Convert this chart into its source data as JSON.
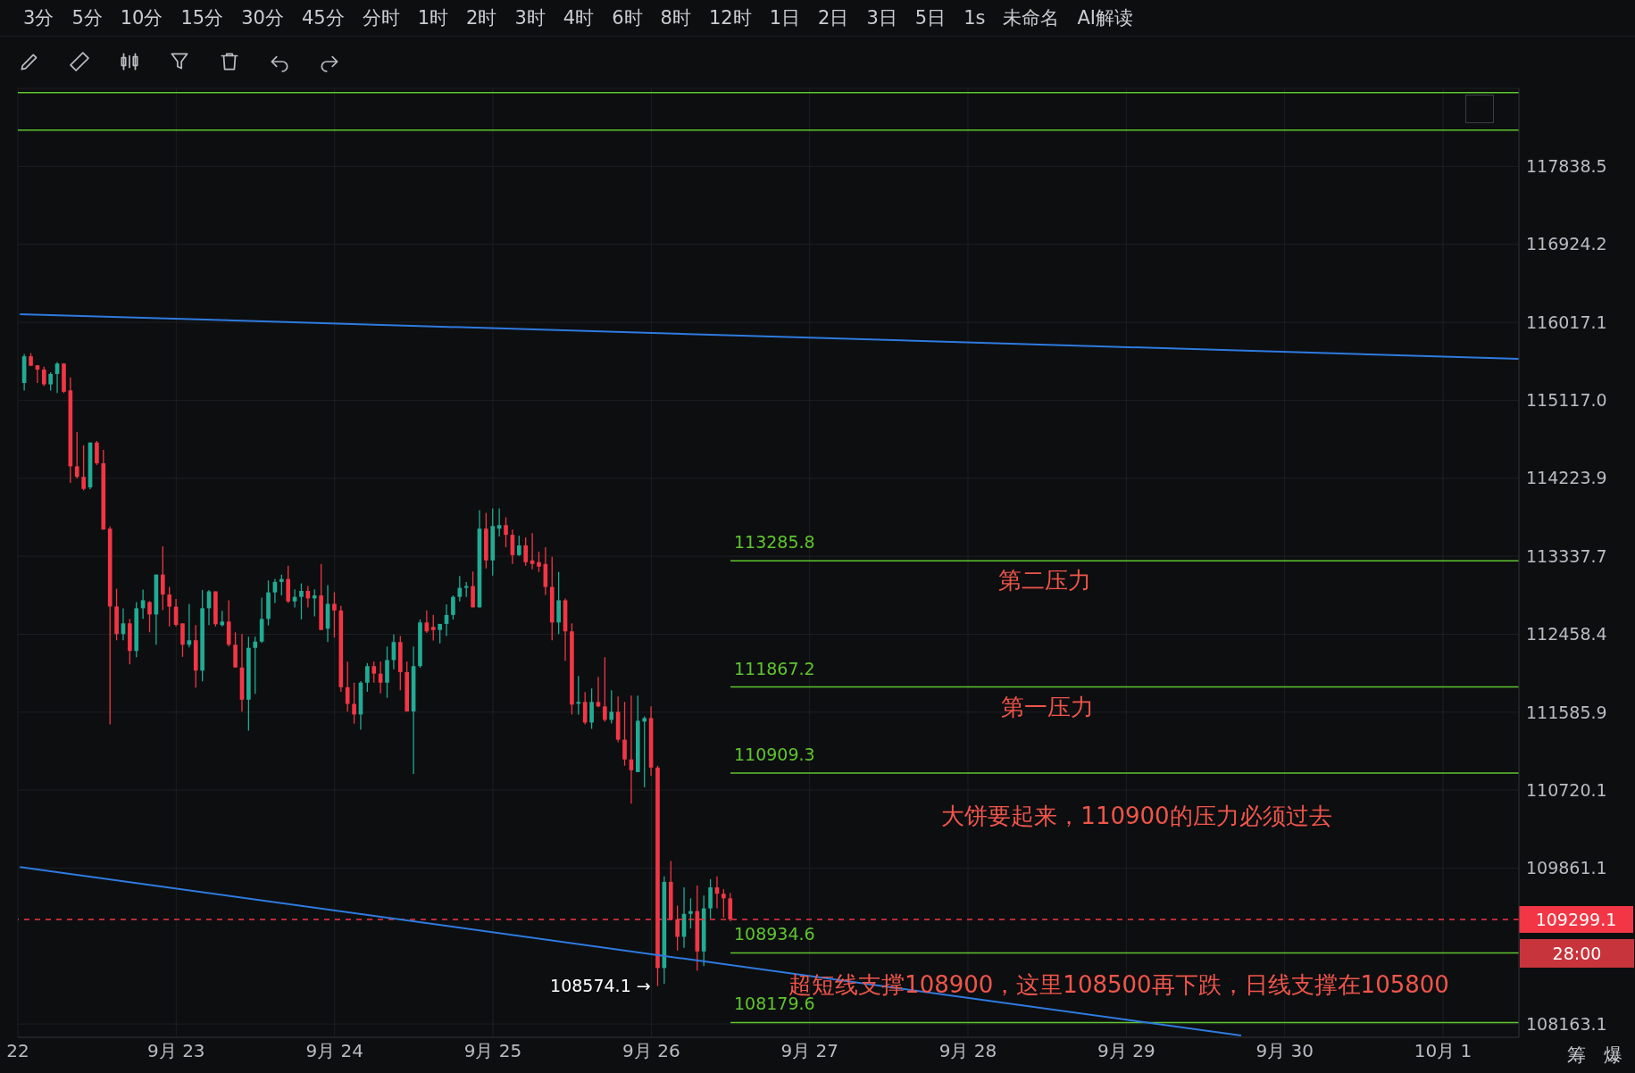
{
  "chart_data": {
    "type": "candlestick",
    "x": [
      "--09-22T01:00",
      "--09-22T02:00",
      "--09-22T03:00",
      "--09-22T04:00",
      "--09-22T05:00",
      "--09-22T06:00",
      "--09-22T07:00",
      "--09-22T08:00",
      "--09-22T09:00",
      "--09-22T10:00",
      "--09-22T11:00",
      "--09-22T12:00",
      "--09-22T13:00",
      "--09-22T14:00",
      "--09-22T15:00",
      "--09-22T16:00",
      "--09-22T17:00",
      "--09-22T18:00",
      "--09-22T19:00",
      "--09-22T20:00",
      "--09-22T21:00",
      "--09-22T22:00",
      "--09-22T23:00",
      "--09-23T00:00",
      "--09-23T01:00",
      "--09-23T02:00",
      "--09-23T03:00",
      "--09-23T04:00",
      "--09-23T05:00",
      "--09-23T06:00",
      "--09-23T07:00",
      "--09-23T08:00",
      "--09-23T09:00",
      "--09-23T10:00",
      "--09-23T11:00",
      "--09-23T12:00",
      "--09-23T13:00",
      "--09-23T14:00",
      "--09-23T15:00",
      "--09-23T16:00",
      "--09-23T17:00",
      "--09-23T18:00",
      "--09-23T19:00",
      "--09-23T20:00",
      "--09-23T21:00",
      "--09-23T22:00",
      "--09-23T23:00",
      "--09-24T00:00",
      "--09-24T01:00",
      "--09-24T02:00",
      "--09-24T03:00",
      "--09-24T04:00",
      "--09-24T05:00",
      "--09-24T06:00",
      "--09-24T07:00",
      "--09-24T08:00",
      "--09-24T09:00",
      "--09-24T10:00",
      "--09-24T11:00",
      "--09-24T12:00",
      "--09-24T13:00",
      "--09-24T14:00",
      "--09-24T15:00",
      "--09-24T16:00",
      "--09-24T17:00",
      "--09-24T18:00",
      "--09-24T19:00",
      "--09-24T20:00",
      "--09-24T21:00",
      "--09-24T22:00",
      "--09-24T23:00",
      "--09-25T00:00",
      "--09-25T01:00",
      "--09-25T02:00",
      "--09-25T03:00",
      "--09-25T04:00",
      "--09-25T05:00",
      "--09-25T06:00",
      "--09-25T07:00",
      "--09-25T08:00",
      "--09-25T09:00",
      "--09-25T10:00",
      "--09-25T11:00",
      "--09-25T12:00",
      "--09-25T13:00",
      "--09-25T14:00",
      "--09-25T15:00",
      "--09-25T16:00",
      "--09-25T17:00",
      "--09-25T18:00",
      "--09-25T19:00",
      "--09-25T20:00",
      "--09-25T21:00",
      "--09-25T22:00",
      "--09-25T23:00",
      "--09-26T00:00",
      "--09-26T01:00",
      "--09-26T02:00",
      "--09-26T03:00",
      "--09-26T04:00",
      "--09-26T05:00",
      "--09-26T06:00",
      "--09-26T07:00",
      "--09-26T08:00",
      "--09-26T09:00",
      "--09-26T10:00",
      "--09-26T11:00",
      "--09-26T12:00"
    ],
    "ohlc": [
      [
        115316,
        115650,
        115230,
        115624
      ],
      [
        115624,
        115660,
        115510,
        115515
      ],
      [
        115520,
        115522,
        115316,
        115470
      ],
      [
        115470,
        115505,
        115280,
        115300
      ],
      [
        115300,
        115440,
        115230,
        115420
      ],
      [
        115420,
        115555,
        115200,
        115540
      ],
      [
        115540,
        115545,
        115200,
        115215
      ],
      [
        115231,
        115380,
        114170,
        114360
      ],
      [
        114360,
        114752,
        114222,
        114240
      ],
      [
        114240,
        114600,
        114085,
        114102
      ],
      [
        114120,
        114632,
        114100,
        114632
      ],
      [
        114632,
        114650,
        114375,
        114395
      ],
      [
        114395,
        114547,
        113640,
        113640
      ],
      [
        113650,
        113675,
        111450,
        112770
      ],
      [
        112770,
        112970,
        112390,
        112460
      ],
      [
        112460,
        112750,
        112390,
        112580
      ],
      [
        112580,
        112630,
        112120,
        112270
      ],
      [
        112270,
        112820,
        112200,
        112750
      ],
      [
        112750,
        112960,
        112630,
        112840
      ],
      [
        112820,
        112830,
        112480,
        112680
      ],
      [
        112680,
        113130,
        112340,
        113130
      ],
      [
        113130,
        113450,
        112730,
        112905
      ],
      [
        112905,
        112990,
        112545,
        112768
      ],
      [
        112768,
        112854,
        112545,
        112563
      ],
      [
        112580,
        112580,
        112204,
        112340
      ],
      [
        112340,
        112800,
        112310,
        112390
      ],
      [
        112390,
        112560,
        111860,
        112050
      ],
      [
        112050,
        112956,
        111930,
        112750
      ],
      [
        112750,
        112956,
        112560,
        112940
      ],
      [
        112940,
        112940,
        112545,
        112570
      ],
      [
        112560,
        112720,
        112545,
        112600
      ],
      [
        112600,
        112840,
        112320,
        112340
      ],
      [
        112340,
        112480,
        112085,
        112085
      ],
      [
        112085,
        112460,
        111590,
        111725
      ],
      [
        111725,
        112430,
        111380,
        112305
      ],
      [
        112305,
        112430,
        111790,
        112375
      ],
      [
        112375,
        112870,
        112360,
        112630
      ],
      [
        112630,
        113064,
        112557,
        112929
      ],
      [
        112929,
        113080,
        112810,
        113047
      ],
      [
        113047,
        113130,
        112895,
        113080
      ],
      [
        113080,
        113230,
        112810,
        112827
      ],
      [
        112827,
        112962,
        112760,
        112878
      ],
      [
        112878,
        113030,
        112625,
        112945
      ],
      [
        112945,
        113000,
        112760,
        112861
      ],
      [
        112861,
        112962,
        112658,
        112895
      ],
      [
        112895,
        113250,
        112506,
        112506
      ],
      [
        112520,
        113010,
        112370,
        112800
      ],
      [
        112800,
        112930,
        112420,
        112725
      ],
      [
        112725,
        112776,
        111813,
        111864
      ],
      [
        111864,
        112150,
        111594,
        111678
      ],
      [
        111678,
        111915,
        111458,
        111560
      ],
      [
        111560,
        111932,
        111390,
        111915
      ],
      [
        111915,
        112134,
        111813,
        112100
      ],
      [
        112100,
        112151,
        111915,
        112016
      ],
      [
        112016,
        112151,
        111796,
        111915
      ],
      [
        111915,
        112320,
        111746,
        112168
      ],
      [
        112168,
        112455,
        112066,
        112370
      ],
      [
        112370,
        112438,
        111830,
        112033
      ],
      [
        112033,
        112151,
        111594,
        111594
      ],
      [
        111594,
        112320,
        110900,
        112100
      ],
      [
        112100,
        112624,
        112083,
        112590
      ],
      [
        112590,
        112726,
        112472,
        112490
      ],
      [
        112540,
        112675,
        112388,
        112506
      ],
      [
        112506,
        112574,
        112354,
        112574
      ],
      [
        112574,
        112793,
        112438,
        112675
      ],
      [
        112675,
        112895,
        112624,
        112878
      ],
      [
        112878,
        113115,
        112827,
        112980
      ],
      [
        112980,
        113047,
        112878,
        113000
      ],
      [
        113000,
        113165,
        112760,
        112760
      ],
      [
        112760,
        113860,
        112760,
        113650
      ],
      [
        113650,
        113830,
        113200,
        113290
      ],
      [
        113290,
        113880,
        113120,
        113680
      ],
      [
        113650,
        113880,
        113560,
        113690
      ],
      [
        113690,
        113780,
        113440,
        113580
      ],
      [
        113580,
        113640,
        113250,
        113350
      ],
      [
        113350,
        113570,
        113340,
        113460
      ],
      [
        113460,
        113550,
        113230,
        113270
      ],
      [
        113290,
        113600,
        113190,
        113250
      ],
      [
        113270,
        113390,
        113160,
        113220
      ],
      [
        113250,
        113440,
        112900,
        112990
      ],
      [
        112990,
        113330,
        112390,
        112590
      ],
      [
        112590,
        113160,
        112460,
        112840
      ],
      [
        112840,
        112860,
        112160,
        112490
      ],
      [
        112490,
        112580,
        111560,
        111670
      ],
      [
        111680,
        111990,
        111560,
        111700
      ],
      [
        111700,
        111810,
        111450,
        111470
      ],
      [
        111470,
        111850,
        111400,
        111700
      ],
      [
        111700,
        111980,
        111640,
        111650
      ],
      [
        111650,
        112200,
        111480,
        111500
      ],
      [
        111500,
        111830,
        111460,
        111590
      ],
      [
        111590,
        111760,
        111250,
        111280
      ],
      [
        111280,
        111700,
        110990,
        111060
      ],
      [
        111060,
        111770,
        110570,
        110940
      ],
      [
        110920,
        111770,
        110920,
        111490
      ],
      [
        111480,
        111540,
        110750,
        111520
      ],
      [
        111520,
        111650,
        110880,
        110970
      ],
      [
        110970,
        110990,
        108574.1,
        108770
      ],
      [
        108770,
        109770,
        108600,
        109710
      ],
      [
        109710,
        109940,
        109290,
        109300
      ],
      [
        109300,
        109450,
        108960,
        109110
      ],
      [
        109110,
        109650,
        108990,
        109360
      ],
      [
        109360,
        109530,
        109200,
        109390
      ],
      [
        109390,
        109670,
        108740,
        108950
      ],
      [
        108950,
        109560,
        108790,
        109420
      ],
      [
        109420,
        109740,
        109310,
        109650
      ],
      [
        109650,
        109770,
        109420,
        109580
      ],
      [
        109580,
        109630,
        109320,
        109530
      ],
      [
        109530,
        109590,
        109280,
        109299.1
      ]
    ],
    "series": [
      {
        "type": "line",
        "x": [
          "--09-22T00:18",
          "--10-01T11:30"
        ],
        "values": [
          116112,
          115595
        ],
        "color": "#2e7be0"
      },
      {
        "type": "line",
        "x": [
          "--09-22T00:18",
          "--09-29T17:24"
        ],
        "values": [
          109873,
          108039
        ],
        "color": "#2e7be0"
      }
    ],
    "xlim": [
      "--09-22T00:00",
      "--10-01T11:30"
    ],
    "xticks": [
      {
        "value": "--09-22",
        "label": "22"
      },
      {
        "value": "--09-23",
        "label": "9月 23"
      },
      {
        "value": "--09-24",
        "label": "9月 24"
      },
      {
        "value": "--09-25",
        "label": "9月 25"
      },
      {
        "value": "--09-26",
        "label": "9月 26"
      },
      {
        "value": "--09-27",
        "label": "9月 27"
      },
      {
        "value": "--09-28",
        "label": "9月 28"
      },
      {
        "value": "--09-29",
        "label": "9月 29"
      },
      {
        "value": "--09-30",
        "label": "9月 30"
      },
      {
        "value": "--10-01",
        "label": "10月 1"
      }
    ],
    "ylim": [
      108020,
      118760
    ],
    "yticks": [
      108163.1,
      109861.1,
      110720.1,
      111585.9,
      112458.4,
      113337.7,
      114223.9,
      {
        "value": 115117,
        "label": "115117.0"
      },
      116017.1,
      116924.2,
      117838.5
    ],
    "log": "y",
    "grid": true,
    "ref_lines": [
      {
        "axis": "y",
        "value": 118711,
        "color": "#5fc52e"
      },
      {
        "axis": "y",
        "value": 118267,
        "color": "#5fc52e"
      },
      {
        "axis": "y",
        "value": 113285.8,
        "label": "113285.8",
        "color": "#5fc52e"
      },
      {
        "axis": "y",
        "value": 111867.2,
        "label": "111867.2",
        "color": "#5fc52e"
      },
      {
        "axis": "y",
        "value": 110909.3,
        "label": "110909.3",
        "color": "#5fc52e"
      },
      {
        "axis": "y",
        "value": 108934.6,
        "label": "108934.6",
        "color": "#5fc52e"
      },
      {
        "axis": "y",
        "value": 108179.6,
        "label": "108179.6",
        "color": "#5fc52e"
      },
      {
        "axis": "y",
        "value": 109299.1,
        "label": "109299.1",
        "color": "#f23645",
        "line_style": "dashed"
      }
    ],
    "annotations": [
      "3分",
      "5分",
      "10分",
      "15分",
      "30分",
      "45分",
      "分时",
      "1时",
      "2时",
      "3时",
      "4时",
      "6时",
      "8时",
      "12时",
      "1日",
      "2日",
      "3日",
      "5日",
      "1s",
      "未命名",
      "AI解读",
      "筹",
      "爆",
      "第二压力",
      "第一压力",
      "大饼要起来，110900的压力必须过去",
      "超短线支撑108900，这里108500再下跌，日线支撑在105800",
      "28:00",
      {
        "text": "108574.1 →",
        "x": "--09-26T01:00",
        "y": 108574.1
      }
    ]
  }
}
